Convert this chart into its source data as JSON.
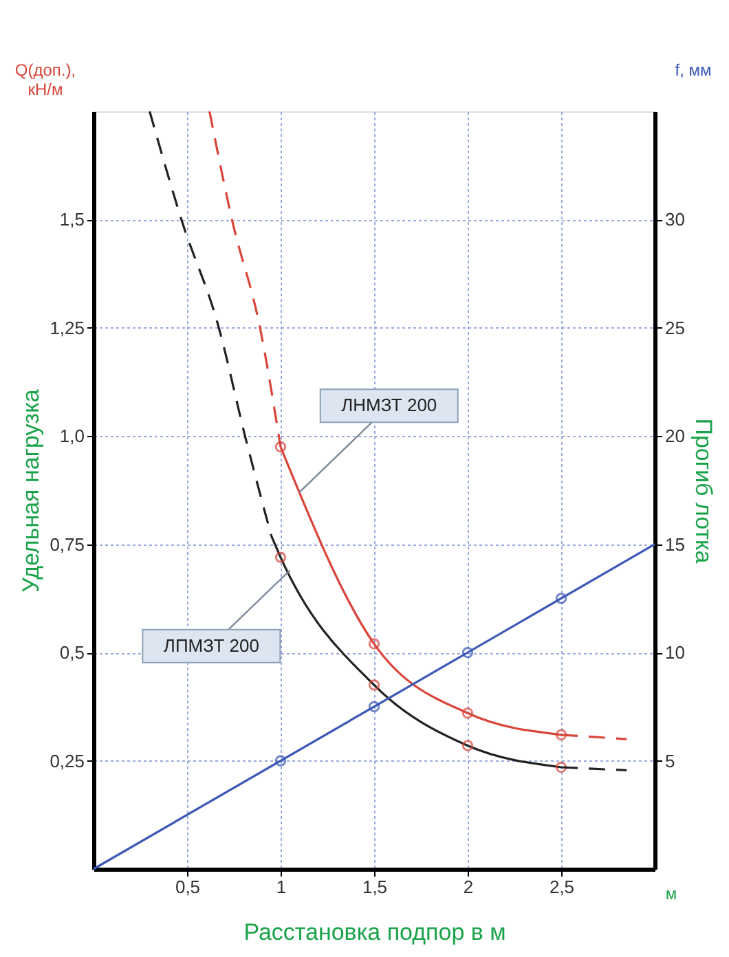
{
  "chart_data": {
    "type": "line",
    "xlabel": "Расстановка подпор в м",
    "ylabel": "Удельная нагрузка",
    "y2label": "Прогиб лотка",
    "annotations": [
      "Q(доп.),\nкН/м",
      "f, мм",
      "м",
      {
        "text": "ЛНМЗТ 200",
        "x": 1.1,
        "y": 0.87
      },
      {
        "text": "ЛПМЗТ 200",
        "x": 1.05,
        "y": 0.69
      }
    ],
    "xlim": [
      0,
      3
    ],
    "xticks": [
      {
        "value": 0.5,
        "label": "0,5"
      },
      1,
      {
        "value": 1.5,
        "label": "1,5"
      },
      2,
      {
        "value": 2.5,
        "label": "2,5"
      }
    ],
    "ylim": [
      0,
      1.75
    ],
    "yticks": [
      {
        "value": 0.25,
        "label": "0,25"
      },
      {
        "value": 0.5,
        "label": "0,5"
      },
      {
        "value": 0.75,
        "label": "0,75"
      },
      {
        "value": 1.0,
        "label": "1,0"
      },
      {
        "value": 1.25,
        "label": "1,25"
      },
      {
        "value": 1.5,
        "label": "1,5"
      }
    ],
    "y2lim": [
      0,
      35
    ],
    "y2ticks": [
      5,
      10,
      15,
      20,
      25,
      30
    ],
    "grid": true,
    "line_style": "solid",
    "series": [
      {
        "color": "#d9453a",
        "x": [
          0.62,
          0.74,
          0.89,
          1.0
        ],
        "values": [
          1.75,
          1.5,
          1.25,
          0.975
        ],
        "line_style": "dashed",
        "marker": "none"
      },
      {
        "color": "#d9453a",
        "x": [
          1,
          1.5,
          2,
          2.5
        ],
        "values": [
          0.975,
          0.52,
          0.36,
          0.31
        ],
        "marker": "circle"
      },
      {
        "color": "#d9453a",
        "x": [
          2.5,
          2.85
        ],
        "values": [
          0.31,
          0.3
        ],
        "line_style": "dashed",
        "marker": "none"
      },
      {
        "color": "#222222",
        "x": [
          0.3,
          0.47,
          0.67,
          0.81,
          0.95
        ],
        "values": [
          1.75,
          1.5,
          1.25,
          1.0,
          0.77
        ],
        "line_style": "dashed",
        "marker": "none"
      },
      {
        "color": "#222222",
        "x": [
          0.95,
          1,
          1.5,
          2,
          2.5
        ],
        "values": [
          0.77,
          0.72,
          0.425,
          0.285,
          0.235
        ],
        "marker": "none"
      },
      {
        "type": "scatter",
        "color": "#d9453a",
        "x": [
          1,
          1.5,
          2,
          2.5
        ],
        "values": [
          0.72,
          0.425,
          0.285,
          0.235
        ],
        "marker": "circle"
      },
      {
        "color": "#222222",
        "x": [
          2.5,
          2.85
        ],
        "values": [
          0.235,
          0.228
        ],
        "line_style": "dashed",
        "marker": "none"
      },
      {
        "color": "#3b58b5",
        "x": [
          0,
          3
        ],
        "values": [
          0,
          15
        ],
        "axis": "y2",
        "marker": "none"
      },
      {
        "type": "scatter",
        "color": "#3b58b5",
        "x": [
          1,
          1.5,
          2,
          2.5
        ],
        "values": [
          5,
          7.5,
          10,
          12.5
        ],
        "axis": "y2",
        "marker": "circle"
      }
    ]
  }
}
